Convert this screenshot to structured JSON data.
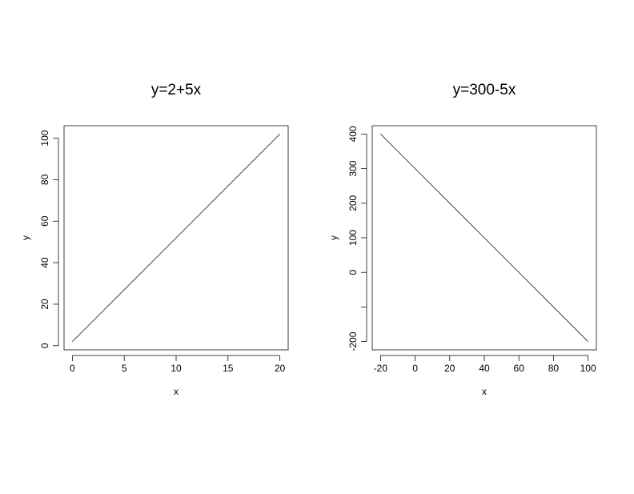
{
  "chart_data": [
    {
      "type": "line",
      "title": "y=2+5x",
      "xlabel": "x",
      "ylabel": "y",
      "xlim": [
        -0.8,
        20.8
      ],
      "ylim": [
        -2,
        106
      ],
      "x_ticks": [
        0,
        5,
        10,
        15,
        20
      ],
      "y_ticks": [
        0,
        20,
        40,
        60,
        80,
        100
      ],
      "x_tick_labels": [
        "0",
        "5",
        "10",
        "15",
        "20"
      ],
      "y_tick_labels": [
        "0",
        "20",
        "40",
        "60",
        "80",
        "100"
      ],
      "grid": false,
      "series": [
        {
          "x": [
            0,
            20
          ],
          "y": [
            2,
            102
          ],
          "color": "#000000"
        }
      ]
    },
    {
      "type": "line",
      "title": "y=300-5x",
      "xlabel": "x",
      "ylabel": "y",
      "xlim": [
        -24.8,
        104.8
      ],
      "ylim": [
        -224,
        424
      ],
      "x_ticks": [
        -20,
        0,
        20,
        40,
        60,
        80,
        100
      ],
      "y_ticks": [
        -200,
        -100,
        0,
        100,
        200,
        300,
        400
      ],
      "x_tick_labels": [
        "-20",
        "0",
        "20",
        "40",
        "60",
        "80",
        "100"
      ],
      "y_tick_labels": [
        "-200",
        "",
        "0",
        "100",
        "200",
        "300",
        "400"
      ],
      "grid": false,
      "series": [
        {
          "x": [
            -20,
            100
          ],
          "y": [
            400,
            -200
          ],
          "color": "#000000"
        }
      ]
    }
  ]
}
